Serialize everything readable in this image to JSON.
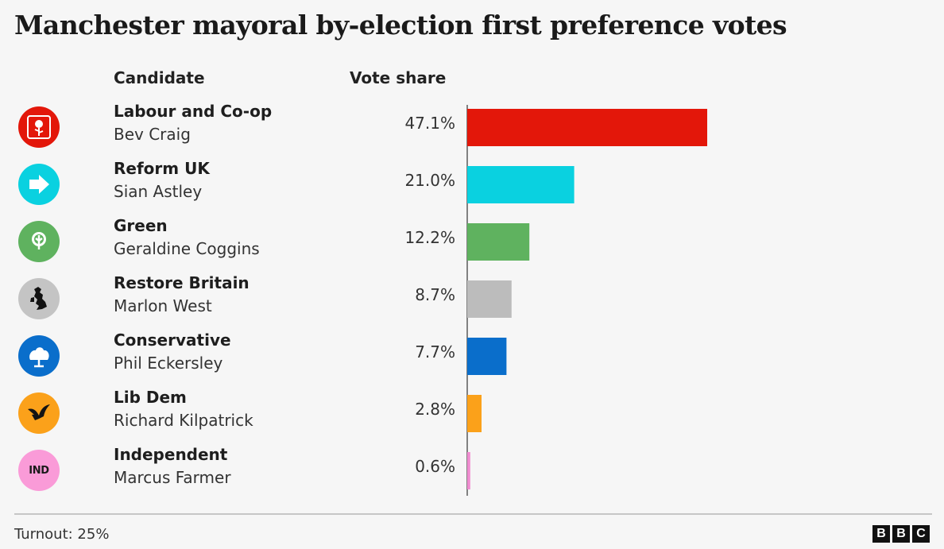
{
  "title": "Manchester mayoral by-election first preference votes",
  "headers": {
    "candidate": "Candidate",
    "share": "Vote share"
  },
  "footer": {
    "turnout": "Turnout: 25%",
    "brand_letters": [
      "B",
      "B",
      "C"
    ]
  },
  "chart_data": {
    "type": "bar",
    "orientation": "horizontal",
    "title": "Manchester mayoral by-election first preference votes",
    "xlabel": "",
    "ylabel": "",
    "xlim": [
      0,
      47.1
    ],
    "grid": false,
    "rows": [
      {
        "party": "Labour and Co-op",
        "candidate": "Bev Craig",
        "value": 47.1,
        "label": "47.1%",
        "color": "#e3170a",
        "logo_color": "#e3170a",
        "icon": "rose-icon"
      },
      {
        "party": "Reform UK",
        "candidate": "Sian Astley",
        "value": 21.0,
        "label": "21.0%",
        "color": "#0ad1e0",
        "logo_color": "#0ad1e0",
        "icon": "arrow-icon"
      },
      {
        "party": "Green",
        "candidate": "Geraldine Coggins",
        "value": 12.2,
        "label": "12.2%",
        "color": "#5fb25f",
        "logo_color": "#5fb25f",
        "icon": "tree-icon"
      },
      {
        "party": "Restore Britain",
        "candidate": "Marlon West",
        "value": 8.7,
        "label": "8.7%",
        "color": "#bcbcbc",
        "logo_color": "#c4c4c4",
        "icon": "uk-map-icon"
      },
      {
        "party": "Conservative",
        "candidate": "Phil Eckersley",
        "value": 7.7,
        "label": "7.7%",
        "color": "#0a6ecb",
        "logo_color": "#0a6ecb",
        "icon": "oak-tree-icon"
      },
      {
        "party": "Lib Dem",
        "candidate": "Richard Kilpatrick",
        "value": 2.8,
        "label": "2.8%",
        "color": "#fba11a",
        "logo_color": "#fba11a",
        "icon": "bird-icon"
      },
      {
        "party": "Independent",
        "candidate": "Marcus Farmer",
        "value": 0.6,
        "label": "0.6%",
        "color": "#f08bd0",
        "logo_color": "#fa9bd8",
        "icon": "ind-icon",
        "logo_text": "IND"
      }
    ]
  }
}
